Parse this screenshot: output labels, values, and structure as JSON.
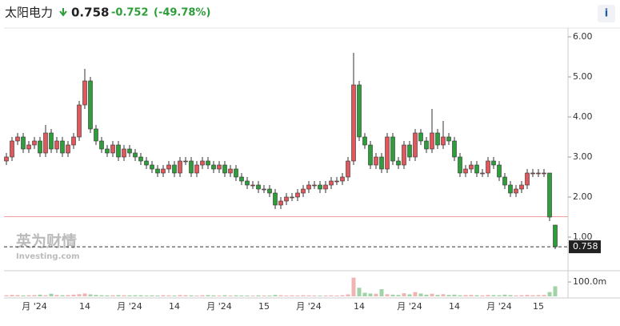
{
  "chart_data": {
    "type": "candlestick",
    "title": "太阳电力",
    "last_price": 0.758,
    "change": -0.752,
    "change_percent": {
      "value": -49.78,
      "label": "(-49.78%)"
    },
    "prev_close": 1.51,
    "watermark": [
      "英为财情",
      "Investing.com"
    ],
    "up_color": "#e0585b",
    "down_color": "#2e9e3a",
    "categories": [
      null,
      null,
      null,
      null,
      null,
      "月 '24",
      null,
      null,
      null,
      null,
      null,
      null,
      null,
      null,
      "14",
      null,
      null,
      null,
      null,
      null,
      null,
      null,
      "月 '24",
      null,
      null,
      null,
      null,
      null,
      null,
      null,
      "14",
      null,
      null,
      null,
      null,
      null,
      null,
      null,
      "月 '24",
      null,
      null,
      null,
      null,
      null,
      null,
      null,
      "15",
      null,
      null,
      null,
      null,
      null,
      null,
      null,
      "月 '24",
      null,
      null,
      null,
      null,
      null,
      null,
      null,
      null,
      "14",
      null,
      null,
      null,
      null,
      null,
      null,
      null,
      null,
      "月 '24",
      null,
      null,
      null,
      null,
      null,
      null,
      null,
      "14",
      null,
      null,
      null,
      null,
      null,
      null,
      null,
      "月 '24",
      null,
      null,
      null,
      null,
      null,
      null,
      "15",
      null,
      null,
      null
    ],
    "open": [
      2.9,
      3.0,
      3.4,
      3.5,
      3.2,
      3.3,
      3.4,
      3.1,
      3.6,
      3.2,
      3.4,
      3.1,
      3.3,
      3.5,
      4.3,
      4.9,
      3.7,
      3.4,
      3.2,
      3.1,
      3.3,
      3.0,
      3.2,
      3.1,
      3.0,
      2.9,
      2.8,
      2.7,
      2.6,
      2.7,
      2.8,
      2.6,
      2.9,
      2.9,
      2.6,
      2.8,
      2.9,
      2.8,
      2.7,
      2.8,
      2.6,
      2.7,
      2.5,
      2.4,
      2.3,
      2.3,
      2.2,
      2.2,
      2.1,
      1.8,
      1.9,
      2.0,
      2.0,
      2.1,
      2.2,
      2.3,
      2.3,
      2.2,
      2.3,
      2.4,
      2.4,
      2.5,
      2.9,
      4.8,
      3.5,
      3.3,
      2.8,
      3.0,
      2.7,
      3.5,
      2.9,
      2.8,
      3.3,
      3.0,
      3.6,
      3.4,
      3.2,
      3.6,
      3.3,
      3.5,
      3.4,
      3.0,
      2.6,
      2.7,
      2.8,
      2.6,
      2.6,
      2.9,
      2.8,
      2.5,
      2.3,
      2.1,
      2.2,
      2.3,
      2.6,
      2.6,
      2.6,
      2.6,
      1.3
    ],
    "high": [
      3.1,
      3.5,
      3.6,
      3.6,
      3.4,
      3.5,
      3.5,
      3.8,
      3.7,
      3.5,
      3.5,
      3.4,
      3.6,
      4.4,
      5.2,
      5.0,
      3.8,
      3.5,
      3.3,
      3.4,
      3.4,
      3.3,
      3.3,
      3.2,
      3.1,
      3.0,
      2.9,
      2.8,
      2.8,
      2.9,
      2.9,
      3.0,
      3.0,
      3.0,
      2.9,
      3.0,
      3.0,
      2.9,
      2.9,
      2.9,
      2.8,
      2.8,
      2.6,
      2.5,
      2.4,
      2.4,
      2.3,
      2.3,
      2.2,
      2.0,
      2.1,
      2.1,
      2.2,
      2.3,
      2.4,
      2.4,
      2.4,
      2.4,
      2.5,
      2.5,
      2.6,
      3.0,
      5.6,
      4.9,
      3.6,
      3.4,
      3.1,
      3.1,
      3.6,
      3.6,
      3.0,
      3.4,
      3.4,
      3.7,
      3.7,
      3.5,
      4.2,
      3.7,
      3.9,
      3.6,
      3.5,
      3.1,
      2.8,
      2.9,
      2.9,
      2.7,
      3.0,
      3.0,
      2.9,
      2.6,
      2.4,
      2.3,
      2.4,
      2.7,
      2.7,
      2.7,
      2.7,
      2.6,
      1.3
    ],
    "low": [
      2.8,
      2.9,
      3.3,
      3.1,
      3.1,
      3.2,
      3.0,
      3.0,
      3.1,
      3.1,
      3.0,
      3.0,
      3.2,
      3.4,
      4.2,
      3.6,
      3.3,
      3.1,
      3.0,
      3.0,
      2.9,
      2.9,
      3.0,
      2.9,
      2.8,
      2.7,
      2.6,
      2.5,
      2.5,
      2.6,
      2.5,
      2.5,
      2.8,
      2.5,
      2.5,
      2.7,
      2.7,
      2.6,
      2.6,
      2.5,
      2.5,
      2.4,
      2.3,
      2.2,
      2.2,
      2.1,
      2.1,
      2.0,
      1.7,
      1.7,
      1.8,
      1.9,
      1.9,
      2.0,
      2.1,
      2.2,
      2.1,
      2.1,
      2.2,
      2.3,
      2.3,
      2.4,
      2.8,
      3.4,
      3.2,
      2.7,
      2.7,
      2.6,
      2.6,
      2.8,
      2.7,
      2.7,
      2.9,
      2.9,
      3.3,
      3.1,
      3.1,
      3.2,
      3.2,
      3.3,
      2.9,
      2.5,
      2.5,
      2.6,
      2.5,
      2.5,
      2.5,
      2.7,
      2.4,
      2.2,
      2.0,
      2.0,
      2.1,
      2.2,
      2.5,
      2.5,
      2.5,
      1.4,
      0.7
    ],
    "close": [
      3.0,
      3.4,
      3.5,
      3.2,
      3.3,
      3.4,
      3.1,
      3.6,
      3.2,
      3.4,
      3.1,
      3.3,
      3.5,
      4.3,
      4.9,
      3.7,
      3.4,
      3.2,
      3.1,
      3.3,
      3.0,
      3.2,
      3.1,
      3.0,
      2.9,
      2.8,
      2.7,
      2.6,
      2.7,
      2.8,
      2.6,
      2.9,
      2.9,
      2.6,
      2.8,
      2.9,
      2.8,
      2.7,
      2.8,
      2.6,
      2.7,
      2.5,
      2.4,
      2.3,
      2.3,
      2.2,
      2.2,
      2.1,
      1.8,
      1.9,
      2.0,
      2.0,
      2.1,
      2.2,
      2.3,
      2.3,
      2.2,
      2.3,
      2.4,
      2.4,
      2.5,
      2.9,
      4.8,
      3.5,
      3.3,
      2.8,
      3.0,
      2.7,
      3.5,
      2.9,
      2.8,
      3.3,
      3.0,
      3.6,
      3.4,
      3.2,
      3.6,
      3.3,
      3.5,
      3.4,
      3.0,
      2.6,
      2.7,
      2.8,
      2.6,
      2.6,
      2.9,
      2.8,
      2.5,
      2.3,
      2.1,
      2.2,
      2.3,
      2.6,
      2.6,
      2.6,
      2.6,
      1.5,
      0.758
    ],
    "volume": [
      8,
      10,
      9,
      7,
      8,
      9,
      12,
      8,
      18,
      10,
      8,
      9,
      12,
      15,
      20,
      14,
      10,
      8,
      7,
      8,
      9,
      8,
      7,
      8,
      8,
      6,
      7,
      6,
      8,
      7,
      6,
      9,
      8,
      7,
      6,
      8,
      9,
      7,
      6,
      8,
      6,
      7,
      6,
      6,
      5,
      7,
      6,
      6,
      10,
      8,
      6,
      7,
      6,
      8,
      7,
      6,
      5,
      6,
      7,
      6,
      8,
      14,
      130,
      60,
      25,
      20,
      18,
      50,
      15,
      12,
      10,
      22,
      14,
      30,
      20,
      12,
      18,
      10,
      15,
      10,
      12,
      8,
      9,
      10,
      8,
      7,
      10,
      9,
      8,
      12,
      9,
      7,
      8,
      10,
      8,
      9,
      10,
      30,
      70
    ],
    "ylim": [
      0.18,
      6.22
    ],
    "yticks": [
      {
        "value": 1,
        "label": "1.00"
      },
      {
        "value": 2,
        "label": "2.00"
      },
      {
        "value": 3,
        "label": "3.00"
      },
      {
        "value": 4,
        "label": "4.00"
      },
      {
        "value": 5,
        "label": "5.00"
      },
      {
        "value": 6,
        "label": "6.00"
      }
    ],
    "volume_ylim": [
      0,
      167
    ],
    "volume_yticks": [
      {
        "value": 100,
        "label": "100.0m"
      }
    ]
  }
}
